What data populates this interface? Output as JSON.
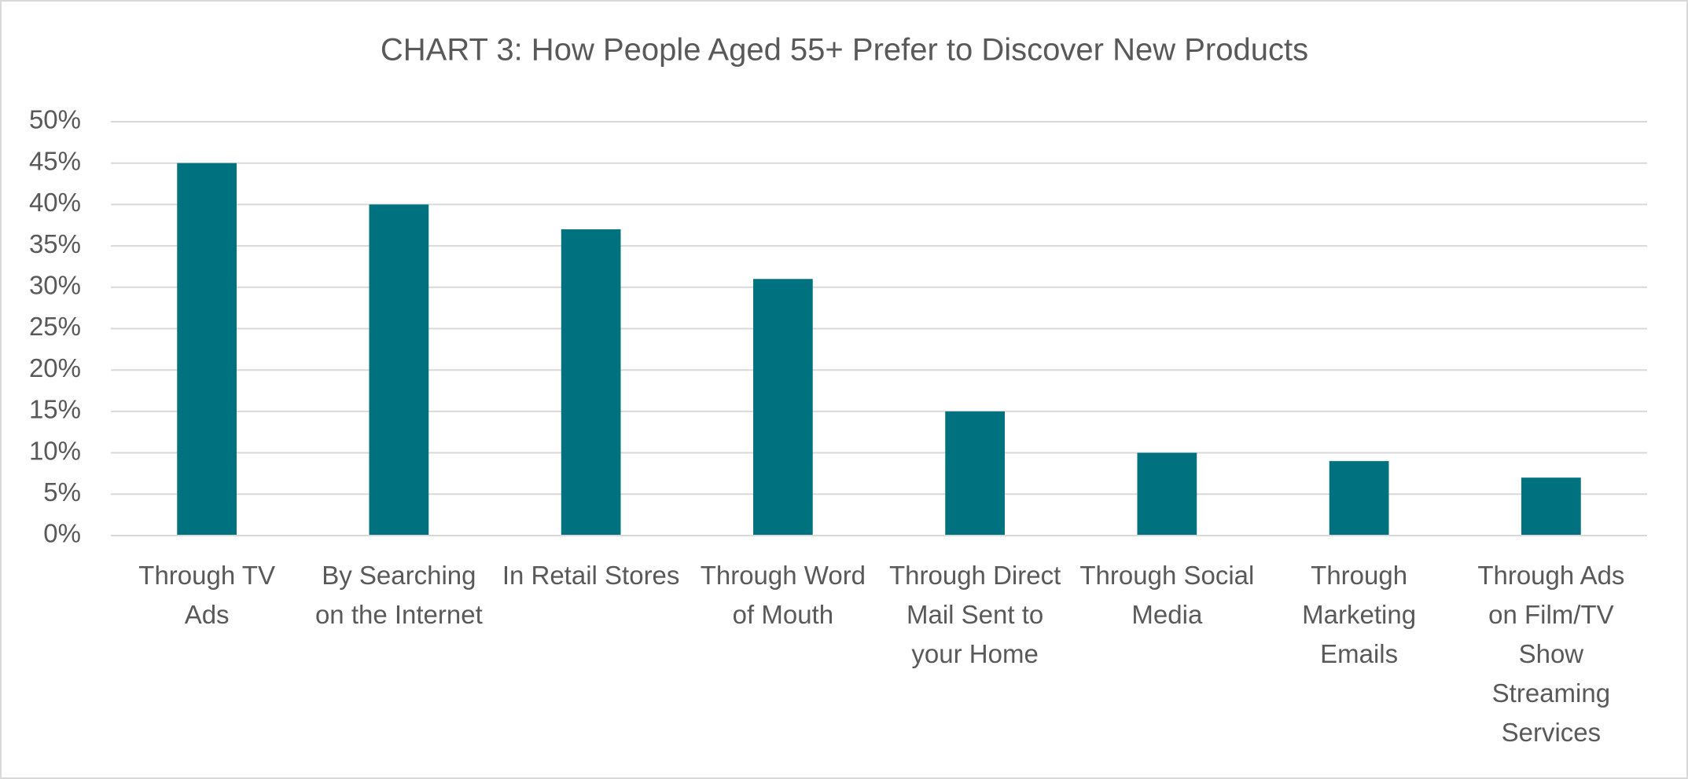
{
  "chart_data": {
    "type": "bar",
    "title": "CHART 3: How People Aged 55+ Prefer to Discover New Products",
    "categories": [
      "Through TV Ads",
      "By Searching on the Internet",
      "In Retail Stores",
      "Through Word of Mouth",
      "Through Direct Mail Sent to your Home",
      "Through Social Media",
      "Through Marketing Emails",
      "Through Ads on Film/TV Show Streaming Services"
    ],
    "values": [
      45,
      40,
      37,
      31,
      15,
      10,
      9,
      7
    ],
    "color": "#00727f",
    "ylim": [
      0,
      50
    ],
    "yticks": [
      {
        "value": 0,
        "label": "0%"
      },
      {
        "value": 5,
        "label": "5%"
      },
      {
        "value": 10,
        "label": "10%"
      },
      {
        "value": 15,
        "label": "15%"
      },
      {
        "value": 20,
        "label": "20%"
      },
      {
        "value": 25,
        "label": "25%"
      },
      {
        "value": 30,
        "label": "30%"
      },
      {
        "value": 35,
        "label": "35%"
      },
      {
        "value": 40,
        "label": "40%"
      },
      {
        "value": 45,
        "label": "45%"
      },
      {
        "value": 50,
        "label": "50%"
      }
    ],
    "grid": true
  }
}
